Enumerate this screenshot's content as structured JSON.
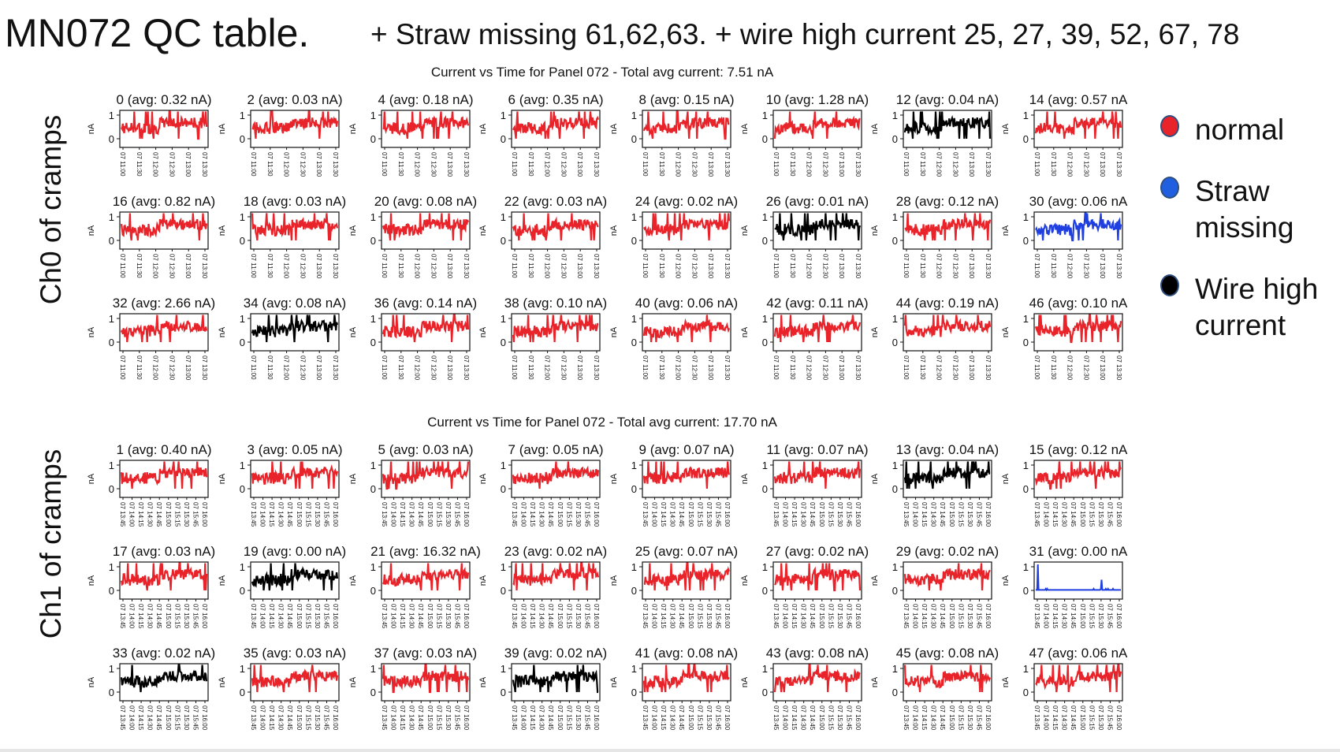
{
  "slide": {
    "title": "MN072 QC table.",
    "subtitle": "+ Straw missing 61,62,63.  + wire high current 25, 27, 39, 52, 67, 78"
  },
  "legend": [
    {
      "label": "normal",
      "color": "#e8232a"
    },
    {
      "label": "Straw missing",
      "color": "#1f5fe0"
    },
    {
      "label": "Wire high current",
      "color": "#000000"
    }
  ],
  "chart_data": [
    {
      "type": "line",
      "group_label": "Ch0 of cramps",
      "title": "Current vs Time for Panel 072 - Total avg current: 7.51 nA",
      "ylabel": "nA",
      "ylim": [
        0,
        1
      ],
      "yticks": [
        "0",
        "1"
      ],
      "xticks": [
        "07 11:00",
        "07 11:30",
        "07 12:00",
        "07 12:30",
        "07 13:00",
        "07 13:30"
      ],
      "subplots": [
        {
          "title": "0 (avg: 0.32 nA)",
          "color": "#e8232a"
        },
        {
          "title": "2 (avg: 0.03 nA)",
          "color": "#e8232a"
        },
        {
          "title": "4 (avg: 0.18 nA)",
          "color": "#e8232a"
        },
        {
          "title": "6 (avg: 0.35 nA)",
          "color": "#e8232a"
        },
        {
          "title": "8 (avg: 0.15 nA)",
          "color": "#e8232a"
        },
        {
          "title": "10 (avg: 1.28 nA)",
          "color": "#e8232a"
        },
        {
          "title": "12 (avg: 0.04 nA)",
          "color": "#000000"
        },
        {
          "title": "14 (avg: 0.57 nA",
          "color": "#e8232a"
        },
        {
          "title": "16 (avg: 0.82 nA)",
          "color": "#e8232a"
        },
        {
          "title": "18 (avg: 0.03 nA)",
          "color": "#e8232a"
        },
        {
          "title": "20 (avg: 0.08 nA)",
          "color": "#e8232a"
        },
        {
          "title": "22 (avg: 0.03 nA)",
          "color": "#e8232a"
        },
        {
          "title": "24 (avg: 0.02 nA)",
          "color": "#e8232a"
        },
        {
          "title": "26 (avg: 0.01 nA)",
          "color": "#000000"
        },
        {
          "title": "28 (avg: 0.12 nA)",
          "color": "#e8232a"
        },
        {
          "title": "30 (avg: 0.06 nA",
          "color": "#1f3fe0"
        },
        {
          "title": "32 (avg: 2.66 nA)",
          "color": "#e8232a"
        },
        {
          "title": "34 (avg: 0.08 nA)",
          "color": "#000000"
        },
        {
          "title": "36 (avg: 0.14 nA)",
          "color": "#e8232a"
        },
        {
          "title": "38 (avg: 0.10 nA)",
          "color": "#e8232a"
        },
        {
          "title": "40 (avg: 0.06 nA)",
          "color": "#e8232a"
        },
        {
          "title": "42 (avg: 0.11 nA)",
          "color": "#e8232a"
        },
        {
          "title": "44 (avg: 0.19 nA)",
          "color": "#e8232a"
        },
        {
          "title": "46 (avg: 0.10 nA",
          "color": "#e8232a"
        }
      ]
    },
    {
      "type": "line",
      "group_label": "Ch1 of cramps",
      "title": "Current vs Time for Panel 072 - Total avg current: 17.70 nA",
      "ylabel": "nA",
      "ylim": [
        0,
        1
      ],
      "yticks": [
        "0",
        "1"
      ],
      "xticks": [
        "07 13:45",
        "07 14:00",
        "07 14:15",
        "07 14:30",
        "07 14:45",
        "07 15:00",
        "07 15:15",
        "07 15:30",
        "07 15:45",
        "07 16:00"
      ],
      "subplots": [
        {
          "title": "1 (avg: 0.40 nA)",
          "color": "#e8232a"
        },
        {
          "title": "3 (avg: 0.05 nA)",
          "color": "#e8232a"
        },
        {
          "title": "5 (avg: 0.03 nA)",
          "color": "#e8232a"
        },
        {
          "title": "7 (avg: 0.05 nA)",
          "color": "#e8232a"
        },
        {
          "title": "9 (avg: 0.07 nA)",
          "color": "#e8232a"
        },
        {
          "title": "11 (avg: 0.07 nA)",
          "color": "#e8232a"
        },
        {
          "title": "13 (avg: 0.04 nA)",
          "color": "#000000"
        },
        {
          "title": "15 (avg: 0.12 nA",
          "color": "#e8232a"
        },
        {
          "title": "17 (avg: 0.03 nA)",
          "color": "#e8232a"
        },
        {
          "title": "19 (avg: 0.00 nA)",
          "color": "#000000"
        },
        {
          "title": "21 (avg: 16.32 nA)",
          "color": "#e8232a"
        },
        {
          "title": "23 (avg: 0.02 nA)",
          "color": "#e8232a"
        },
        {
          "title": "25 (avg: 0.07 nA)",
          "color": "#e8232a"
        },
        {
          "title": "27 (avg: 0.02 nA)",
          "color": "#e8232a"
        },
        {
          "title": "29 (avg: 0.02 nA)",
          "color": "#e8232a"
        },
        {
          "title": "31 (avg: 0.00 nA",
          "color": "#1f3fe0"
        },
        {
          "title": "33 (avg: 0.02 nA)",
          "color": "#000000"
        },
        {
          "title": "35 (avg: 0.03 nA)",
          "color": "#e8232a"
        },
        {
          "title": "37 (avg: 0.03 nA)",
          "color": "#e8232a"
        },
        {
          "title": "39 (avg: 0.02 nA)",
          "color": "#000000"
        },
        {
          "title": "41 (avg: 0.08 nA)",
          "color": "#e8232a"
        },
        {
          "title": "43 (avg: 0.08 nA)",
          "color": "#e8232a"
        },
        {
          "title": "45 (avg: 0.08 nA)",
          "color": "#e8232a"
        },
        {
          "title": "47 (avg: 0.06 nA",
          "color": "#e8232a"
        }
      ]
    }
  ]
}
